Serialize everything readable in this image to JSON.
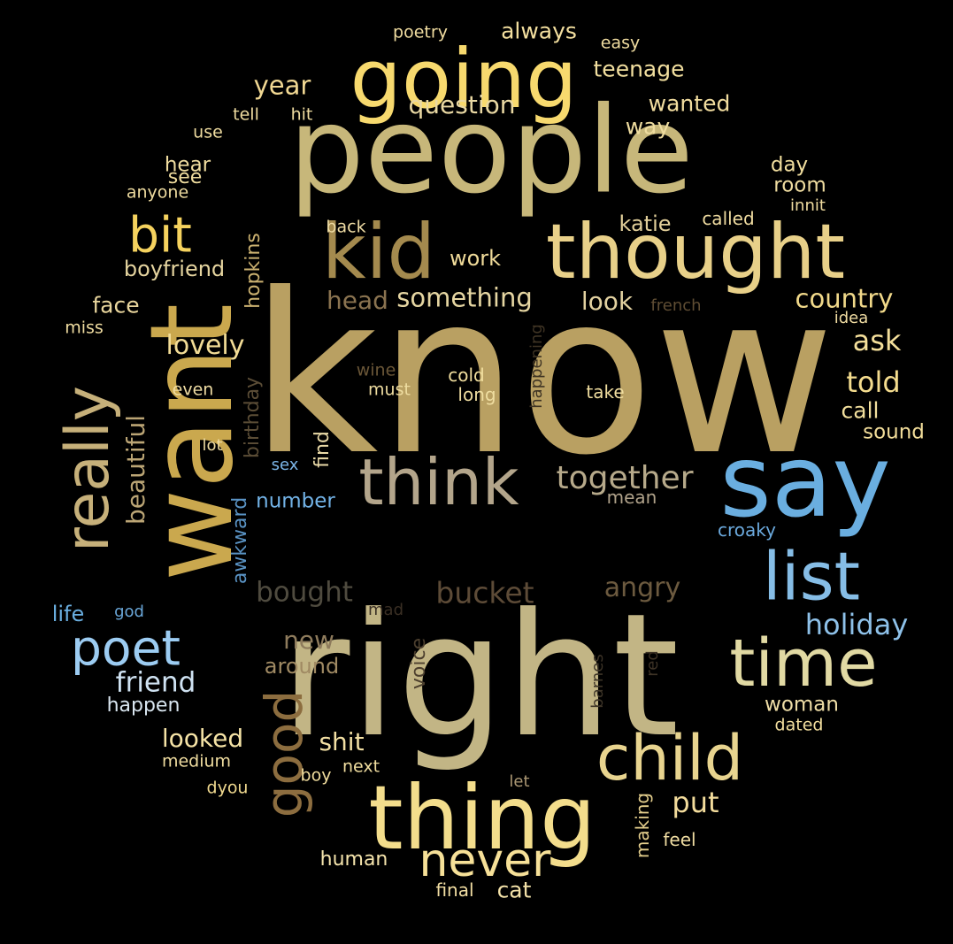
{
  "words": [
    {
      "text": "know",
      "color": "#b9a062"
    },
    {
      "text": "right",
      "color": "#c2b585"
    },
    {
      "text": "people",
      "color": "#c7b77a"
    },
    {
      "text": "want",
      "color": "#caa84e"
    },
    {
      "text": "say",
      "color": "#6aaee0"
    },
    {
      "text": "thing",
      "color": "#f3dd8c"
    },
    {
      "text": "going",
      "color": "#f7d96e"
    },
    {
      "text": "thought",
      "color": "#e8d089"
    },
    {
      "text": "kid",
      "color": "#a48a4e"
    },
    {
      "text": "think",
      "color": "#b3a58b"
    },
    {
      "text": "child",
      "color": "#e8d48f"
    },
    {
      "text": "time",
      "color": "#e1d9a3"
    },
    {
      "text": "list",
      "color": "#86bde6"
    },
    {
      "text": "really",
      "color": "#c6b07a"
    },
    {
      "text": "never",
      "color": "#f6e098"
    },
    {
      "text": "good",
      "color": "#8c6d3f"
    },
    {
      "text": "poet",
      "color": "#9cccf2"
    },
    {
      "text": "bit",
      "color": "#f5d25e"
    },
    {
      "text": "together",
      "color": "#b6a98a"
    },
    {
      "text": "bucket",
      "color": "#5d4b37"
    },
    {
      "text": "angry",
      "color": "#6c5a3f"
    },
    {
      "text": "bought",
      "color": "#4f4b3f"
    },
    {
      "text": "holiday",
      "color": "#8ec1e9"
    },
    {
      "text": "friend",
      "color": "#cfe2f2"
    },
    {
      "text": "put",
      "color": "#f3dc9c"
    },
    {
      "text": "year",
      "color": "#f1d893"
    },
    {
      "text": "question",
      "color": "#e9d8a3"
    },
    {
      "text": "something",
      "color": "#e6d6a2"
    },
    {
      "text": "head",
      "color": "#8a7350"
    },
    {
      "text": "country",
      "color": "#f1d98a"
    },
    {
      "text": "lovely",
      "color": "#f2dc96"
    },
    {
      "text": "ask",
      "color": "#f4df9b"
    },
    {
      "text": "told",
      "color": "#f4dc8e"
    },
    {
      "text": "look",
      "color": "#e3d2a1"
    },
    {
      "text": "beautiful",
      "color": "#bba575"
    },
    {
      "text": "looked",
      "color": "#f5e3a6"
    },
    {
      "text": "shit",
      "color": "#f2dfa3"
    },
    {
      "text": "new",
      "color": "#8e7b5c"
    },
    {
      "text": "around",
      "color": "#a08a63"
    },
    {
      "text": "face",
      "color": "#e9d69d"
    },
    {
      "text": "work",
      "color": "#f0db9a"
    },
    {
      "text": "boyfriend",
      "color": "#e5d49f"
    },
    {
      "text": "katie",
      "color": "#e2cf9a"
    },
    {
      "text": "wanted",
      "color": "#f2dd9f"
    },
    {
      "text": "teenage",
      "color": "#f2df9f"
    },
    {
      "text": "always",
      "color": "#f3df9f"
    },
    {
      "text": "way",
      "color": "#eedc9f"
    },
    {
      "text": "day",
      "color": "#f1de9e"
    },
    {
      "text": "room",
      "color": "#efdca0"
    },
    {
      "text": "hear",
      "color": "#efdc9f"
    },
    {
      "text": "see",
      "color": "#f0dd9f"
    },
    {
      "text": "called",
      "color": "#efdba0"
    },
    {
      "text": "mean",
      "color": "#b0a28a"
    },
    {
      "text": "woman",
      "color": "#eedda6"
    },
    {
      "text": "happen",
      "color": "#d9e6f0"
    },
    {
      "text": "human",
      "color": "#f5e4ac"
    },
    {
      "text": "cat",
      "color": "#f3e1a8"
    },
    {
      "text": "call",
      "color": "#f2df9d"
    },
    {
      "text": "sound",
      "color": "#f2dd9a"
    },
    {
      "text": "hopkins",
      "color": "#cbb170"
    },
    {
      "text": "number",
      "color": "#72b2e6"
    },
    {
      "text": "life",
      "color": "#6aaee0"
    },
    {
      "text": "awkward",
      "color": "#5a93c4"
    },
    {
      "text": "voice",
      "color": "#4c3f2e"
    },
    {
      "text": "birthday",
      "color": "#5b4d36"
    },
    {
      "text": "find",
      "color": "#e9d9a7"
    },
    {
      "text": "back",
      "color": "#f0dda5"
    },
    {
      "text": "cold",
      "color": "#f1de9e"
    },
    {
      "text": "long",
      "color": "#efdda0"
    },
    {
      "text": "take",
      "color": "#f0dd9f"
    },
    {
      "text": "happening",
      "color": "#3f3424"
    },
    {
      "text": "wine",
      "color": "#6a5637"
    },
    {
      "text": "must",
      "color": "#eedca0"
    },
    {
      "text": "even",
      "color": "#efdca3"
    },
    {
      "text": "lot",
      "color": "#ecd9a0"
    },
    {
      "text": "sex",
      "color": "#7cb6e8"
    },
    {
      "text": "croaky",
      "color": "#6ba9dd"
    },
    {
      "text": "god",
      "color": "#6aa7d9"
    },
    {
      "text": "mad",
      "color": "#3a2f24"
    },
    {
      "text": "barnes",
      "color": "#3d3427"
    },
    {
      "text": "red",
      "color": "#3e3326"
    },
    {
      "text": "making",
      "color": "#e5cf8d"
    },
    {
      "text": "feel",
      "color": "#f0dda2"
    },
    {
      "text": "dated",
      "color": "#f3df9f"
    },
    {
      "text": "medium",
      "color": "#f0dda0"
    },
    {
      "text": "dyou",
      "color": "#f0d98f"
    },
    {
      "text": "boy",
      "color": "#f1dd9e"
    },
    {
      "text": "next",
      "color": "#f1dea0"
    },
    {
      "text": "let",
      "color": "#ab9773"
    },
    {
      "text": "final",
      "color": "#f2dea3"
    },
    {
      "text": "poetry",
      "color": "#f0dca0"
    },
    {
      "text": "easy",
      "color": "#f0dca0"
    },
    {
      "text": "tell",
      "color": "#efdca0"
    },
    {
      "text": "hit",
      "color": "#efdca0"
    },
    {
      "text": "use",
      "color": "#efdca0"
    },
    {
      "text": "anyone",
      "color": "#efdca0"
    },
    {
      "text": "miss",
      "color": "#efdca0"
    },
    {
      "text": "french",
      "color": "#5f4d33"
    },
    {
      "text": "idea",
      "color": "#f0dca2"
    },
    {
      "text": "innit",
      "color": "#f0dca0"
    }
  ]
}
